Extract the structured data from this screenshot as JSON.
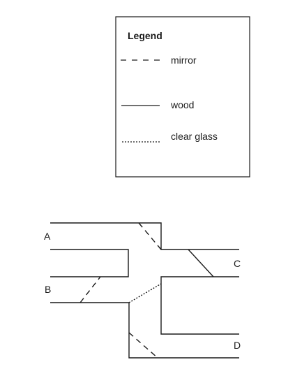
{
  "legend": {
    "title": "Legend",
    "items": [
      {
        "style": "dashed",
        "label": "mirror"
      },
      {
        "style": "solid",
        "label": "wood"
      },
      {
        "style": "dotted",
        "label": "clear glass"
      }
    ]
  },
  "labels": {
    "a": "A",
    "b": "B",
    "c": "C",
    "d": "D"
  },
  "colors": {
    "stroke": "#1a1a1a",
    "background": "#ffffff"
  }
}
